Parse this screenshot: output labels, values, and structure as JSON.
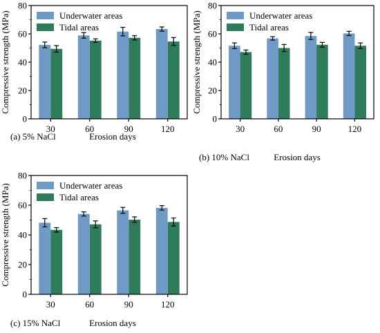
{
  "chart_data": [
    {
      "type": "bar",
      "panel_label": "(a) 5% NaCl",
      "xlabel": "Erosion days",
      "ylabel": "Compressive strength (MPa)",
      "categories": [
        "30",
        "60",
        "90",
        "120"
      ],
      "ylim": [
        0,
        80
      ],
      "yticks": [
        "0",
        "20",
        "40",
        "60",
        "80"
      ],
      "legend_position": "top-left",
      "grid": false,
      "series": [
        {
          "name": "Underwater areas",
          "color": "#6f9ac6",
          "values": [
            52.2,
            58.9,
            61.6,
            63.4
          ],
          "errors": [
            2.0,
            2.0,
            3.0,
            1.5
          ]
        },
        {
          "name": "Tidal areas",
          "color": "#2f7c5b",
          "values": [
            49.4,
            55.2,
            57.2,
            54.6
          ],
          "errors": [
            2.3,
            1.3,
            1.5,
            2.8
          ]
        }
      ]
    },
    {
      "type": "bar",
      "panel_label": "(b) 10% NaCl",
      "xlabel": "Erosion days",
      "ylabel": "Compressive strength (MPa)",
      "categories": [
        "30",
        "60",
        "90",
        "120"
      ],
      "ylim": [
        0,
        80
      ],
      "yticks": [
        "0",
        "20",
        "40",
        "60",
        "80"
      ],
      "legend_position": "top-left",
      "grid": false,
      "series": [
        {
          "name": "Underwater areas",
          "color": "#6f9ac6",
          "values": [
            51.6,
            56.8,
            58.5,
            60.3
          ],
          "errors": [
            2.0,
            1.2,
            2.5,
            1.5
          ]
        },
        {
          "name": "Tidal areas",
          "color": "#2f7c5b",
          "values": [
            47.1,
            50.0,
            52.3,
            51.6
          ],
          "errors": [
            1.5,
            2.5,
            1.7,
            2.0
          ]
        }
      ]
    },
    {
      "type": "bar",
      "panel_label": "(c) 15% NaCl",
      "xlabel": "Erosion days",
      "ylabel": "Compressive strength (MPa)",
      "categories": [
        "30",
        "60",
        "90",
        "120"
      ],
      "ylim": [
        0,
        80
      ],
      "yticks": [
        "0",
        "20",
        "40",
        "60",
        "80"
      ],
      "legend_position": "top-left",
      "grid": false,
      "series": [
        {
          "name": "Underwater areas",
          "color": "#6f9ac6",
          "values": [
            48.2,
            54.1,
            56.5,
            58.2
          ],
          "errors": [
            2.8,
            1.4,
            2.0,
            1.5
          ]
        },
        {
          "name": "Tidal areas",
          "color": "#2f7c5b",
          "values": [
            43.4,
            47.1,
            50.3,
            48.7
          ],
          "errors": [
            1.5,
            2.3,
            1.8,
            2.7
          ]
        }
      ]
    }
  ]
}
